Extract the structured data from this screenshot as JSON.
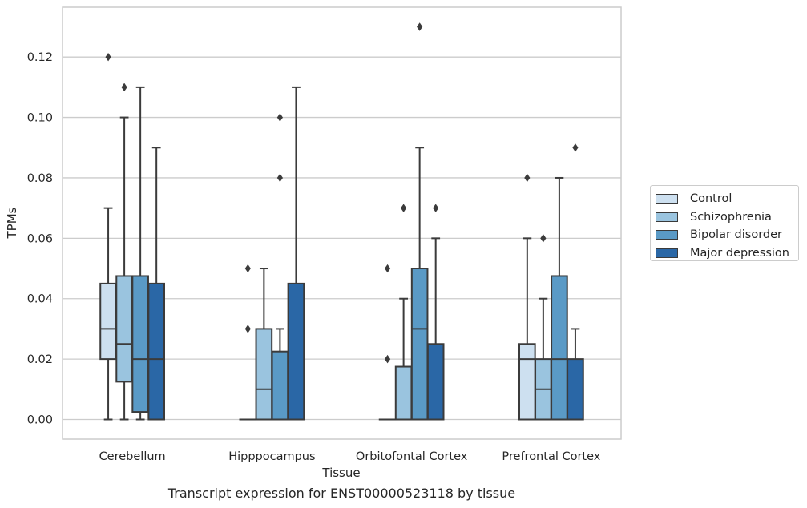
{
  "chart_data": {
    "type": "boxplot",
    "xlabel": "Tissue",
    "ylabel": "TPMs",
    "caption": "Transcript expression for ENST00000523118 by tissue",
    "categories": [
      "Cerebellum",
      "Hipppocampus",
      "Orbitofontal Cortex",
      "Prefrontal Cortex"
    ],
    "ylim": [
      -0.0065,
      0.1365
    ],
    "yticks": [
      0.0,
      0.02,
      0.04,
      0.06,
      0.08,
      0.1,
      0.12
    ],
    "ytick_labels": [
      "0.00",
      "0.02",
      "0.04",
      "0.06",
      "0.08",
      "0.10",
      "0.12"
    ],
    "grid": "horizontal",
    "legend_position": "right",
    "series": [
      {
        "name": "Control",
        "color": "#cde0f0",
        "boxes": [
          {
            "q1": 0.02,
            "median": 0.03,
            "q3": 0.045,
            "whislo": 0.0,
            "whishi": 0.07,
            "fliers": [
              0.12
            ]
          },
          {
            "q1": 0.0,
            "median": 0.0,
            "q3": 0.0,
            "whislo": 0.0,
            "whishi": 0.0,
            "fliers": [
              0.03,
              0.05
            ]
          },
          {
            "q1": 0.0,
            "median": 0.0,
            "q3": 0.0,
            "whislo": 0.0,
            "whishi": 0.0,
            "fliers": [
              0.02,
              0.05
            ]
          },
          {
            "q1": 0.0,
            "median": 0.02,
            "q3": 0.025,
            "whislo": 0.0,
            "whishi": 0.06,
            "fliers": [
              0.08
            ]
          }
        ]
      },
      {
        "name": "Schizophrenia",
        "color": "#9ac4df",
        "boxes": [
          {
            "q1": 0.0125,
            "median": 0.025,
            "q3": 0.0475,
            "whislo": 0.0,
            "whishi": 0.1,
            "fliers": [
              0.11
            ]
          },
          {
            "q1": 0.0,
            "median": 0.01,
            "q3": 0.03,
            "whislo": 0.0,
            "whishi": 0.05,
            "fliers": []
          },
          {
            "q1": 0.0,
            "median": 0.0,
            "q3": 0.0175,
            "whislo": 0.0,
            "whishi": 0.04,
            "fliers": [
              0.07
            ]
          },
          {
            "q1": 0.0,
            "median": 0.01,
            "q3": 0.02,
            "whislo": 0.0,
            "whishi": 0.04,
            "fliers": [
              0.06
            ]
          }
        ]
      },
      {
        "name": "Bipolar disorder",
        "color": "#5a9ac6",
        "boxes": [
          {
            "q1": 0.0025,
            "median": 0.02,
            "q3": 0.0475,
            "whislo": 0.0,
            "whishi": 0.11,
            "fliers": []
          },
          {
            "q1": 0.0,
            "median": 0.0,
            "q3": 0.0225,
            "whislo": 0.0,
            "whishi": 0.03,
            "fliers": [
              0.08,
              0.1
            ]
          },
          {
            "q1": 0.0,
            "median": 0.03,
            "q3": 0.05,
            "whislo": 0.0,
            "whishi": 0.09,
            "fliers": [
              0.13
            ]
          },
          {
            "q1": 0.0,
            "median": 0.02,
            "q3": 0.0475,
            "whislo": 0.0,
            "whishi": 0.08,
            "fliers": []
          }
        ]
      },
      {
        "name": "Major depression",
        "color": "#2a67a6",
        "boxes": [
          {
            "q1": 0.0,
            "median": 0.02,
            "q3": 0.045,
            "whislo": 0.0,
            "whishi": 0.09,
            "fliers": []
          },
          {
            "q1": 0.0,
            "median": 0.0,
            "q3": 0.045,
            "whislo": 0.0,
            "whishi": 0.11,
            "fliers": []
          },
          {
            "q1": 0.0,
            "median": 0.0,
            "q3": 0.025,
            "whislo": 0.0,
            "whishi": 0.06,
            "fliers": [
              0.07
            ]
          },
          {
            "q1": 0.0,
            "median": 0.0,
            "q3": 0.02,
            "whislo": 0.0,
            "whishi": 0.03,
            "fliers": [
              0.09
            ]
          }
        ]
      }
    ]
  }
}
